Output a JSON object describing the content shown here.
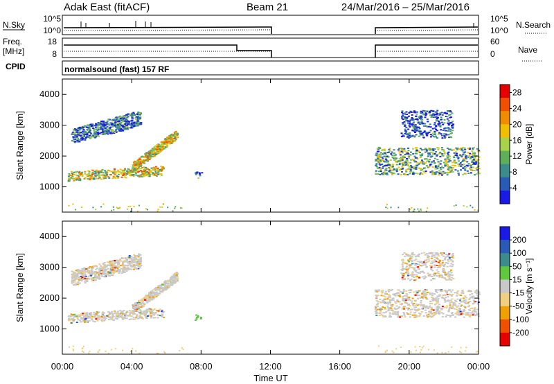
{
  "header": {
    "station": "Adak East (fitACF)",
    "beam": "Beam 21",
    "date_range": "24/Mar/2016 – 25/Mar/2016"
  },
  "panels": {
    "nsky_label": "N.Sky",
    "nsearch_label": "N.Search",
    "nsky_ticks": [
      "10^5",
      "10^0"
    ],
    "nsearch_ticks": [
      "10^5",
      "10^0"
    ],
    "freq_label_1": "Freq.",
    "freq_label_2": "[MHz]",
    "freq_ticks": [
      "18",
      "8"
    ],
    "nave_label": "Nave",
    "nave_ticks": [
      "60",
      "0"
    ],
    "cpid_label": "CPID",
    "cpid_text": "normalsound (fast) 157 RF"
  },
  "colors": {
    "power": [
      "#1a1ae6",
      "#2a5ab8",
      "#3c8c8c",
      "#5fae5a",
      "#a8d24a",
      "#f0c000",
      "#f08c00",
      "#f05000",
      "#e60000"
    ],
    "velocity": [
      "#e60000",
      "#f05000",
      "#f0a000",
      "#f0d080",
      "#c8c8c8",
      "#5fc83c",
      "#3c8c8c",
      "#2a5ab8",
      "#1a1ae6"
    ],
    "ground_scatter": "#c8c8c8"
  },
  "chart_data": [
    {
      "type": "heatmap",
      "title": "",
      "xlabel": "Time UT",
      "ylabel": "Slant Range [km]",
      "x_ticks": [
        "00:00",
        "04:00",
        "08:00",
        "12:00",
        "16:00",
        "20:00",
        "00:00"
      ],
      "y_ticks": [
        "1000",
        "2000",
        "3000",
        "4000"
      ],
      "xlim": [
        0,
        24
      ],
      "ylim": [
        180,
        4500
      ],
      "colorbar": {
        "label": "Power [dB]",
        "ticks": [
          "4",
          "8",
          "12",
          "16",
          "20",
          "24",
          "28"
        ],
        "range": [
          0,
          30
        ]
      },
      "regions": [
        {
          "t0": 0.3,
          "t1": 5.8,
          "r0": 1180,
          "r1": 1700,
          "level": 0.55
        },
        {
          "t0": 4.0,
          "t1": 6.6,
          "r0": 1500,
          "r1": 2700,
          "level": 0.55
        },
        {
          "t0": 0.5,
          "t1": 4.5,
          "r0": 2400,
          "r1": 3500,
          "level": 0.2
        },
        {
          "t0": 7.6,
          "t1": 8.0,
          "r0": 1280,
          "r1": 1500,
          "level": 0.2
        },
        {
          "t0": 18.0,
          "t1": 24.0,
          "r0": 1400,
          "r1": 2300,
          "level": 0.35
        },
        {
          "t0": 19.5,
          "t1": 22.5,
          "r0": 2600,
          "r1": 3500,
          "level": 0.15
        }
      ]
    },
    {
      "type": "heatmap",
      "title": "",
      "xlabel": "Time UT",
      "ylabel": "Slant Range [km]",
      "x_ticks": [
        "00:00",
        "04:00",
        "08:00",
        "12:00",
        "16:00",
        "20:00",
        "00:00"
      ],
      "y_ticks": [
        "1000",
        "2000",
        "3000",
        "4000"
      ],
      "xlim": [
        0,
        24
      ],
      "ylim": [
        180,
        4500
      ],
      "colorbar": {
        "label": "Velocity [m s⁻¹]",
        "ticks": [
          "200",
          "100",
          "50",
          "15",
          "-15",
          "-50",
          "-100",
          "-200"
        ],
        "range": [
          -250,
          250
        ]
      },
      "regions": [
        {
          "t0": 0.3,
          "t1": 5.8,
          "r0": 1180,
          "r1": 1700,
          "level": 0.5
        },
        {
          "t0": 4.0,
          "t1": 6.6,
          "r0": 1500,
          "r1": 2700,
          "level": 0.4
        },
        {
          "t0": 0.5,
          "t1": 4.5,
          "r0": 2400,
          "r1": 3500,
          "level": 0.35
        },
        {
          "t0": 7.6,
          "t1": 8.0,
          "r0": 1280,
          "r1": 1500,
          "level": 0.65
        },
        {
          "t0": 18.0,
          "t1": 24.0,
          "r0": 1400,
          "r1": 2300,
          "level": 0.5
        },
        {
          "t0": 19.5,
          "t1": 22.5,
          "r0": 2600,
          "r1": 3500,
          "level": 0.5
        }
      ]
    }
  ]
}
